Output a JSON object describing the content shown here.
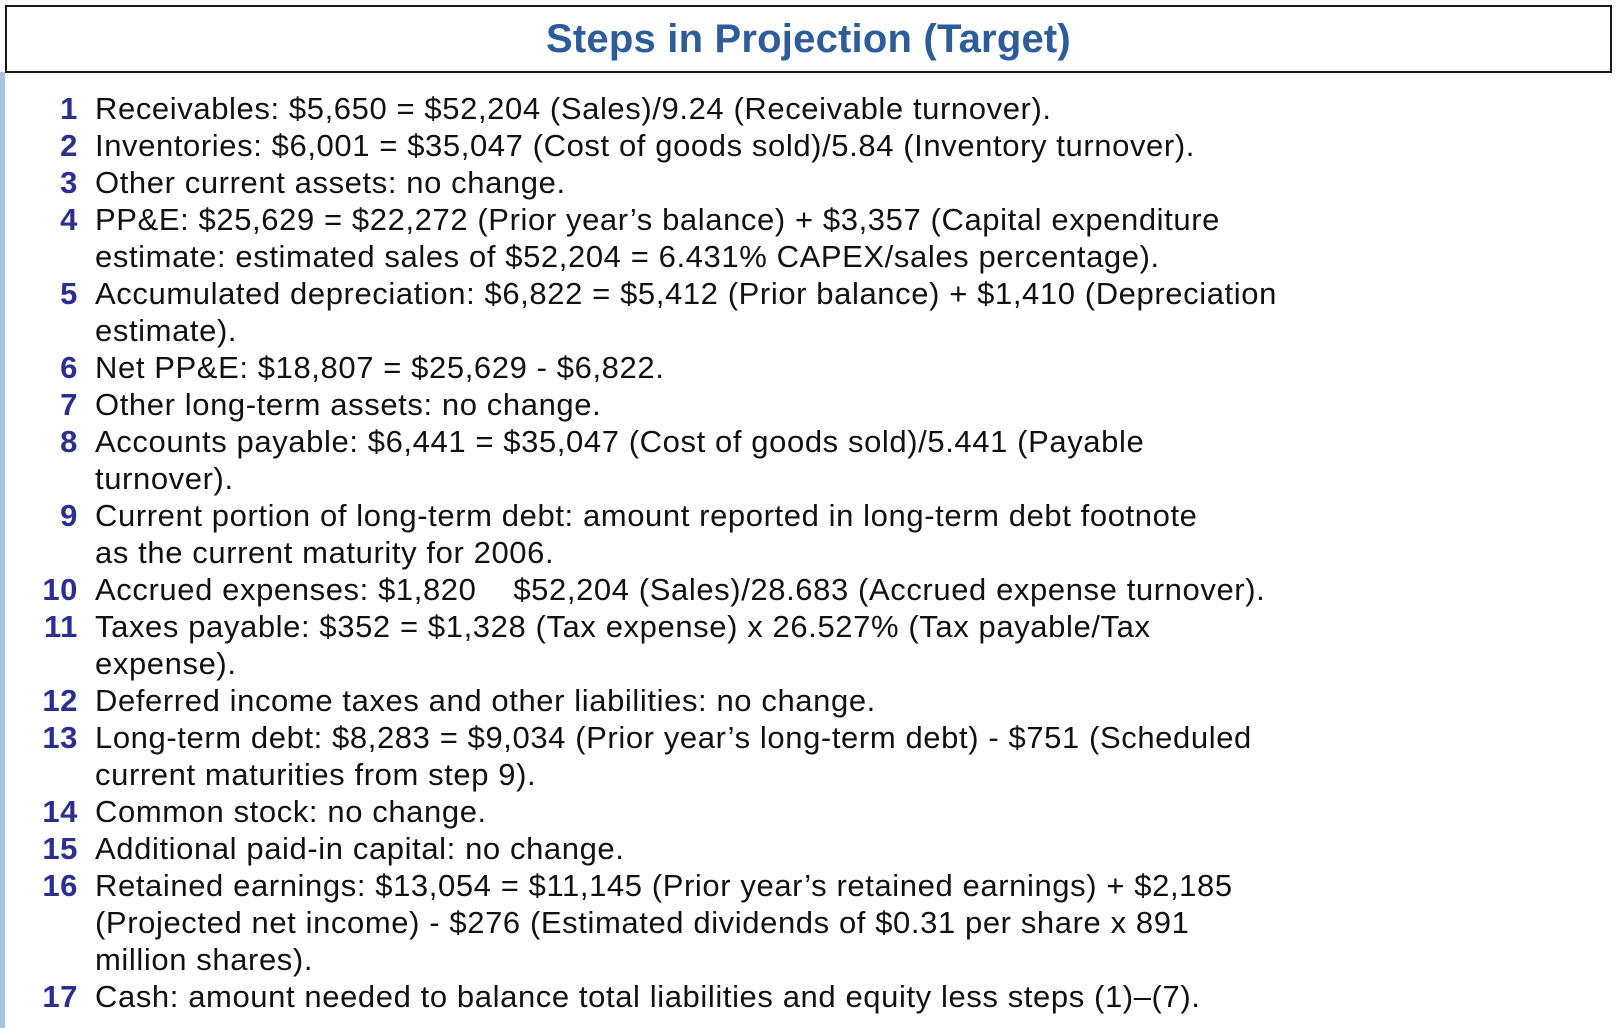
{
  "title": "Steps in Projection (Target)",
  "steps": [
    {
      "num": "1",
      "lines": [
        "Receivables: $5,650 = $52,204 (Sales)/9.24 (Receivable turnover)."
      ]
    },
    {
      "num": "2",
      "lines": [
        "Inventories: $6,001 = $35,047 (Cost of goods sold)/5.84 (Inventory turnover)."
      ]
    },
    {
      "num": "3",
      "lines": [
        "Other current assets: no change."
      ]
    },
    {
      "num": "4",
      "lines": [
        "PP&E: $25,629 = $22,272 (Prior year’s balance) + $3,357 (Capital expenditure",
        "estimate: estimated sales of $52,204 = 6.431% CAPEX/sales percentage)."
      ]
    },
    {
      "num": "5",
      "lines": [
        "Accumulated depreciation: $6,822 = $5,412 (Prior balance) + $1,410 (Depreciation",
        "estimate)."
      ]
    },
    {
      "num": "6",
      "lines": [
        "Net PP&E: $18,807 = $25,629 - $6,822."
      ]
    },
    {
      "num": "7",
      "lines": [
        "Other long-term assets: no change."
      ]
    },
    {
      "num": "8",
      "lines": [
        "Accounts payable: $6,441 = $35,047 (Cost of goods sold)/5.441 (Payable",
        "turnover)."
      ]
    },
    {
      "num": "9",
      "lines": [
        "Current portion of long-term debt: amount reported in long-term debt footnote",
        "as the current maturity for 2006."
      ]
    },
    {
      "num": "10",
      "lines": [
        "Accrued expenses: $1,820    $52,204 (Sales)/28.683 (Accrued expense turnover)."
      ]
    },
    {
      "num": "11",
      "lines": [
        "Taxes payable: $352 = $1,328 (Tax expense) x 26.527% (Tax payable/Tax",
        "expense)."
      ]
    },
    {
      "num": "12",
      "lines": [
        "Deferred income taxes and other liabilities: no change."
      ]
    },
    {
      "num": "13",
      "lines": [
        "Long-term debt: $8,283 = $9,034 (Prior year’s long-term debt) - $751 (Scheduled",
        "current maturities from step 9)."
      ]
    },
    {
      "num": "14",
      "lines": [
        "Common stock: no change."
      ]
    },
    {
      "num": "15",
      "lines": [
        "Additional paid-in capital: no change."
      ]
    },
    {
      "num": "16",
      "lines": [
        "Retained earnings: $13,054 = $11,145 (Prior year’s retained earnings) + $2,185",
        "(Projected net income) - $276 (Estimated dividends of $0.31 per share x 891",
        "million shares)."
      ]
    },
    {
      "num": "17",
      "lines": [
        "Cash: amount needed to balance total liabilities and equity less steps (1)–(7)."
      ]
    }
  ]
}
